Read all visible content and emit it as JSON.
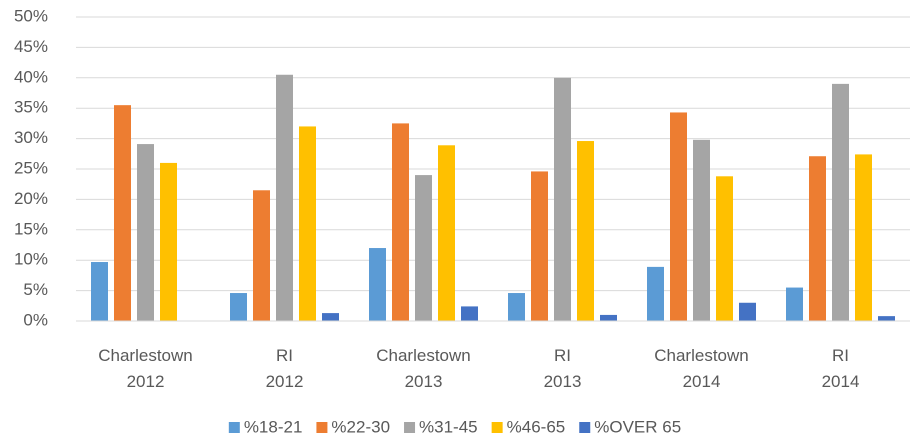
{
  "chart_data": {
    "type": "bar",
    "categories": [
      "Charlestown 2012",
      "RI 2012",
      "Charlestown 2013",
      "RI 2013",
      "Charlestown 2014",
      "RI 2014"
    ],
    "series": [
      {
        "name": "%18-21",
        "color": "#5b9bd5",
        "values": [
          9.7,
          4.6,
          12,
          4.6,
          8.9,
          5.5
        ]
      },
      {
        "name": "%22-30",
        "color": "#ed7d31",
        "values": [
          35.5,
          21.5,
          32.5,
          24.6,
          34.3,
          27.1
        ]
      },
      {
        "name": "%31-45",
        "color": "#a5a5a5",
        "values": [
          29.1,
          40.5,
          24,
          40,
          29.8,
          39
        ]
      },
      {
        "name": "%46-65",
        "color": "#ffc000",
        "values": [
          26,
          32,
          28.9,
          29.6,
          23.8,
          27.4
        ]
      },
      {
        "name": "%OVER 65",
        "color": "#4472c4",
        "values": [
          0,
          1.3,
          2.4,
          1,
          3,
          0.8
        ]
      }
    ],
    "ylim": [
      0,
      50
    ],
    "yticks": [
      {
        "value": 0,
        "label": "0%"
      },
      {
        "value": 5,
        "label": "5%"
      },
      {
        "value": 10,
        "label": "10%"
      },
      {
        "value": 15,
        "label": "15%"
      },
      {
        "value": 20,
        "label": "20%"
      },
      {
        "value": 25,
        "label": "25%"
      },
      {
        "value": 30,
        "label": "30%"
      },
      {
        "value": 35,
        "label": "35%"
      },
      {
        "value": 40,
        "label": "40%"
      },
      {
        "value": 45,
        "label": "45%"
      },
      {
        "value": 50,
        "label": "50%"
      }
    ],
    "grid": true,
    "legend": "bottom"
  }
}
